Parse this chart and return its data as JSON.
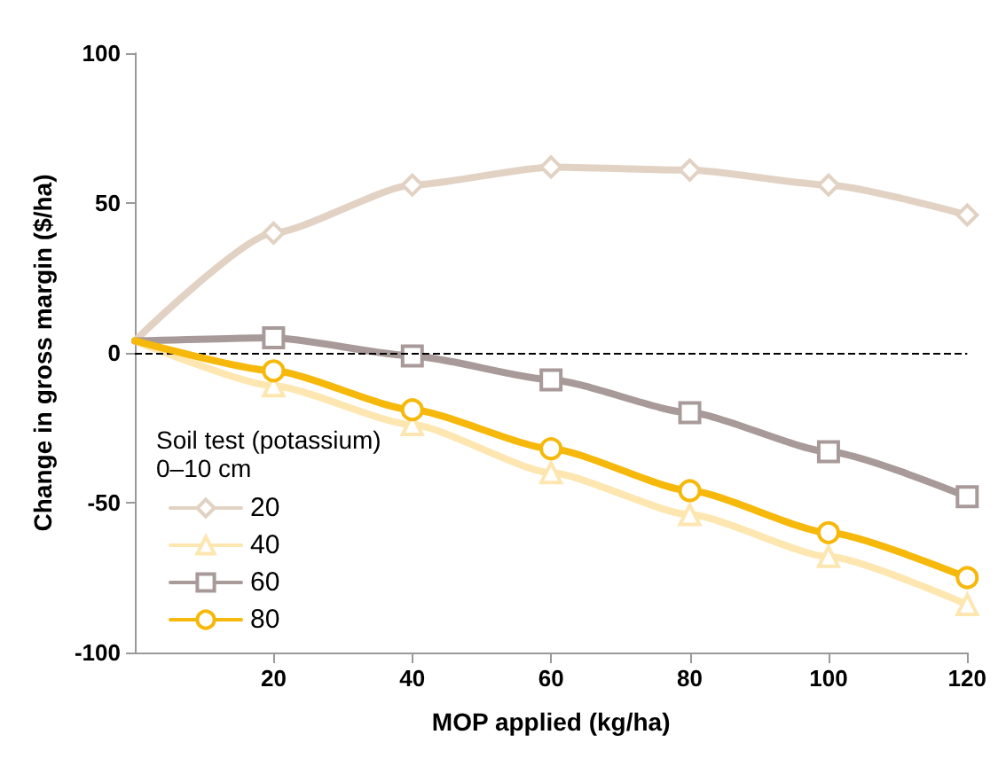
{
  "chart_data": {
    "type": "line",
    "xlabel": "MOP applied (kg/ha)",
    "ylabel": "Change in gross margin ($/ha)",
    "legend_title": "Soil test (potassium)\n0–10 cm",
    "x": [
      0,
      20,
      40,
      60,
      80,
      100,
      120
    ],
    "series": [
      {
        "name": "20",
        "color": "#e2d2c4",
        "marker": "diamond",
        "values": [
          4,
          40,
          56,
          62,
          61,
          56,
          46
        ]
      },
      {
        "name": "40",
        "color": "#fde6b0",
        "marker": "triangle",
        "values": [
          4,
          -11,
          -24,
          -40,
          -54,
          -68,
          -84
        ]
      },
      {
        "name": "60",
        "color": "#a89a99",
        "marker": "square",
        "values": [
          4,
          5,
          -1,
          -9,
          -20,
          -33,
          -48
        ]
      },
      {
        "name": "80",
        "color": "#f6b80a",
        "marker": "circle",
        "values": [
          4,
          -6,
          -19,
          -32,
          -46,
          -60,
          -75
        ]
      }
    ],
    "xlim": [
      0,
      120
    ],
    "xticks": [
      20,
      40,
      60,
      80,
      100,
      120
    ],
    "ylim": [
      -100,
      100
    ],
    "yticks": [
      -100,
      -50,
      0,
      50,
      100
    ],
    "ref_lines": [
      {
        "axis": "y",
        "value": 0,
        "color": "#000000",
        "line_style": "dashed"
      }
    ],
    "grid": false,
    "legend": "bottom left",
    "line_style": "solid"
  }
}
